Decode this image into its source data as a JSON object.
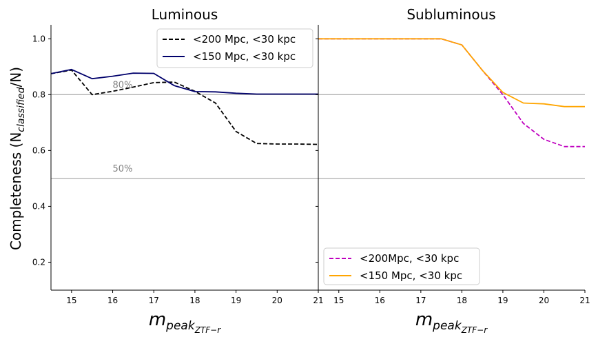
{
  "chart_data": [
    {
      "type": "line",
      "title": "Luminous",
      "xlabel": "m",
      "xlabel_sub": "peak",
      "xlabel_subsub": "ZTF−r",
      "ylabel": "Completeness (N",
      "ylabel_sub": "classified",
      "ylabel_tail": "/N)",
      "xlim": [
        14.5,
        21
      ],
      "ylim": [
        0.1,
        1.05
      ],
      "xticks": [
        15,
        16,
        17,
        18,
        19,
        20,
        21
      ],
      "yticks": [
        0.2,
        0.4,
        0.6,
        0.8,
        1.0
      ],
      "ytick_labels": [
        "0.2",
        "0.4",
        "0.6",
        "0.8",
        "1.0"
      ],
      "reference_lines": [
        {
          "y": 0.8,
          "label": "80%",
          "color": "#b3b3b3"
        },
        {
          "y": 0.5,
          "label": "50%",
          "color": "#b3b3b3"
        }
      ],
      "legend_position": "top-right",
      "series": [
        {
          "name": "<200 Mpc, <30 kpc",
          "color": "#000000",
          "dash": "dashed",
          "x": [
            14.5,
            15.0,
            15.5,
            16.0,
            16.5,
            17.0,
            17.5,
            18.0,
            18.5,
            19.0,
            19.5,
            20.0,
            20.5,
            21.0
          ],
          "y": [
            0.875,
            0.888,
            0.8,
            0.812,
            0.827,
            0.843,
            0.845,
            0.812,
            0.77,
            0.668,
            0.625,
            0.623,
            0.623,
            0.622
          ]
        },
        {
          "name": "<150 Mpc, <30 kpc",
          "color": "#00006b",
          "dash": "solid",
          "x": [
            14.5,
            15.0,
            15.5,
            16.0,
            16.5,
            17.0,
            17.5,
            18.0,
            18.5,
            19.0,
            19.5,
            20.0,
            20.5,
            21.0
          ],
          "y": [
            0.875,
            0.89,
            0.857,
            0.866,
            0.877,
            0.876,
            0.832,
            0.811,
            0.81,
            0.805,
            0.802,
            0.802,
            0.802,
            0.802
          ]
        }
      ]
    },
    {
      "type": "line",
      "title": "Subluminous",
      "xlabel": "m",
      "xlabel_sub": "peak",
      "xlabel_subsub": "ZTF−r",
      "xlim": [
        14.5,
        21
      ],
      "ylim": [
        0.1,
        1.05
      ],
      "xticks": [
        15,
        16,
        17,
        18,
        19,
        20,
        21
      ],
      "reference_lines": [
        {
          "y": 0.8,
          "color": "#b3b3b3"
        },
        {
          "y": 0.5,
          "color": "#b3b3b3"
        }
      ],
      "legend_position": "bottom-left",
      "series": [
        {
          "name": "<200Mpc, <30 kpc",
          "color": "#bf00bf",
          "dash": "dashed",
          "x": [
            14.5,
            15.0,
            15.5,
            16.0,
            16.5,
            17.0,
            17.5,
            18.0,
            18.5,
            19.0,
            19.5,
            20.0,
            20.5,
            21.0
          ],
          "y": [
            1.0,
            1.0,
            1.0,
            1.0,
            1.0,
            1.0,
            1.0,
            0.978,
            0.887,
            0.8,
            0.697,
            0.64,
            0.614,
            0.614
          ]
        },
        {
          "name": "<150 Mpc, <30 kpc",
          "color": "#ffa500",
          "dash": "solid",
          "x": [
            14.5,
            15.0,
            15.5,
            16.0,
            16.5,
            17.0,
            17.5,
            18.0,
            18.5,
            19.0,
            19.5,
            20.0,
            20.5,
            21.0
          ],
          "y": [
            1.0,
            1.0,
            1.0,
            1.0,
            1.0,
            1.0,
            1.0,
            0.978,
            0.887,
            0.808,
            0.77,
            0.767,
            0.757,
            0.757
          ]
        }
      ]
    }
  ]
}
